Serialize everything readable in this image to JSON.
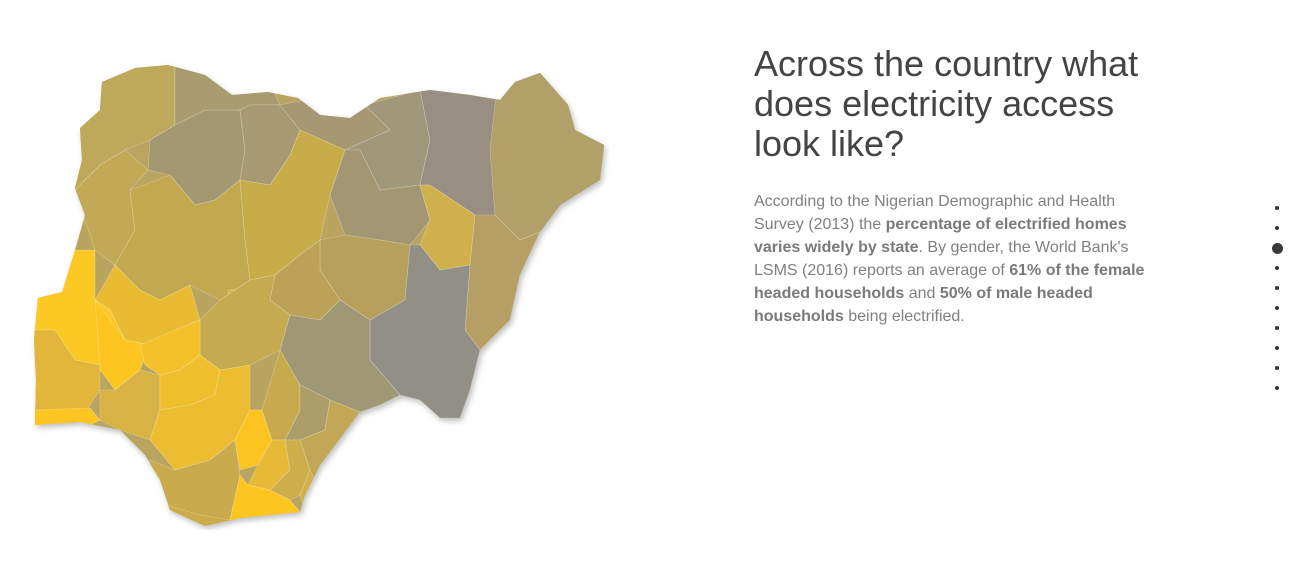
{
  "story": {
    "title": "Across the country what does electricity access look like?",
    "paragraph": [
      {
        "text": "According to the Nigerian Demographic and Health Survey (2013) the ",
        "bold": false
      },
      {
        "text": "percentage of electrified homes varies widely by state",
        "bold": true
      },
      {
        "text": ". By gender, the World Bank's LSMS (2016) reports an average of ",
        "bold": false
      },
      {
        "text": "61% of the female headed households",
        "bold": true
      },
      {
        "text": " and ",
        "bold": false
      },
      {
        "text": "50% of male headed households",
        "bold": true
      },
      {
        "text": " being electrified.",
        "bold": false
      }
    ]
  },
  "map": {
    "color_scale": {
      "low": "#8f8f87",
      "high": "#fdc521"
    }
  },
  "nav": {
    "dot_count": 10,
    "active_index": 2
  }
}
